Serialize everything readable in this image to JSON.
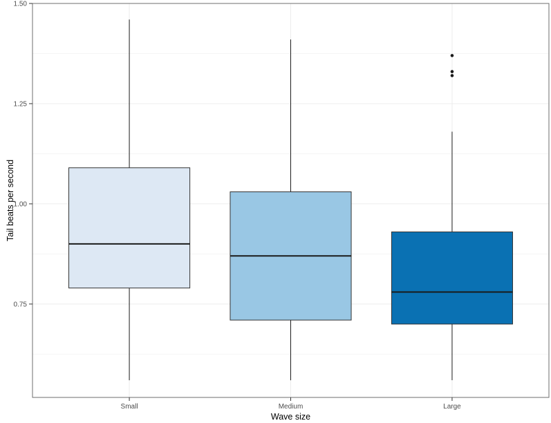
{
  "chart_data": {
    "type": "boxplot",
    "title": "",
    "xlabel": "Wave size",
    "ylabel": "Tail beats per second",
    "categories": [
      "Small",
      "Medium",
      "Large"
    ],
    "ylim": [
      0.517,
      1.5
    ],
    "yticks": [
      {
        "value": 0.75,
        "label": "0.75"
      },
      {
        "value": 1.0,
        "label": "1.00"
      },
      {
        "value": 1.25,
        "label": "1.25"
      },
      {
        "value": 1.5,
        "label": "1.50"
      }
    ],
    "yticks_minor": [
      0.625,
      0.875,
      1.125,
      1.375
    ],
    "series": [
      {
        "category": "Small",
        "whisker_low": 0.56,
        "q1": 0.79,
        "median": 0.9,
        "q3": 1.09,
        "whisker_high": 1.46,
        "outliers": [],
        "fill": "#dde8f4"
      },
      {
        "category": "Medium",
        "whisker_low": 0.56,
        "q1": 0.71,
        "median": 0.87,
        "q3": 1.03,
        "whisker_high": 1.41,
        "outliers": [],
        "fill": "#99c7e4"
      },
      {
        "category": "Large",
        "whisker_low": 0.56,
        "q1": 0.7,
        "median": 0.78,
        "q3": 0.93,
        "whisker_high": 1.18,
        "outliers": [
          1.37,
          1.33,
          1.32
        ],
        "fill": "#0a71b3"
      }
    ],
    "legend": null,
    "grid": {
      "major_color": "#ececec",
      "minor_color": "#f5f5f5",
      "vertical_major": true
    },
    "colors": {
      "panel_border": "#6e6e6e",
      "tick": "#333333",
      "tick_label": "#4d4d4d",
      "axis_title": "#000000",
      "box_stroke": "#333333",
      "median": "#1a1a1a",
      "whisker": "#1a1a1a",
      "outlier": "#1a1a1a",
      "background": "#ffffff"
    }
  }
}
